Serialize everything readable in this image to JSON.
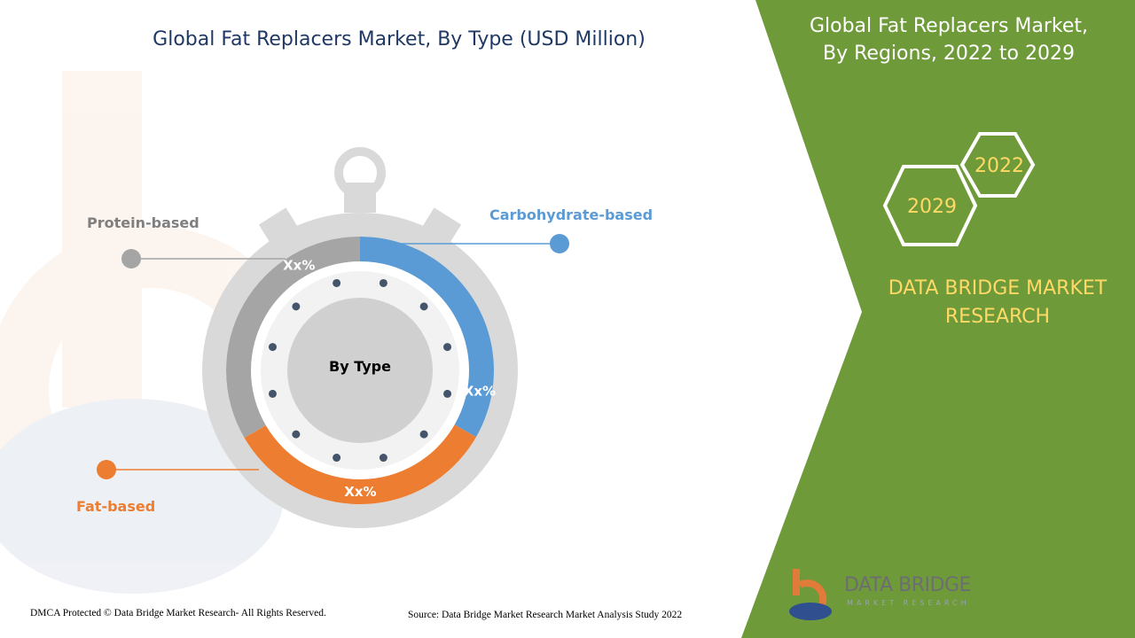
{
  "header": {
    "title": "Global Fat Replacers Market, By Type (USD Million)"
  },
  "side_panel": {
    "title_line1": "Global Fat Replacers Market,",
    "title_line2": "By Regions, 2022 to 2029",
    "year_start": "2022",
    "year_end": "2029",
    "brand_line1": "DATA BRIDGE MARKET",
    "brand_line2": "RESEARCH",
    "panel_color": "#6e9a3a",
    "brand_text_color": "#ffd966"
  },
  "chart_data": {
    "type": "pie",
    "title": "Global Fat Replacers Market, By Type (USD Million)",
    "center_label": "By Type",
    "series": [
      {
        "name": "Carbohydrate-based",
        "label": "Xx%",
        "share": 0.333,
        "color": "#5b9bd5"
      },
      {
        "name": "Fat-based",
        "label": "Xx%",
        "share": 0.333,
        "color": "#ed7d31"
      },
      {
        "name": "Protein-based",
        "label": "Xx%",
        "share": 0.334,
        "color": "#a5a5a5"
      }
    ]
  },
  "footer": {
    "copyright": "DMCA Protected © Data Bridge Market Research- All Rights Reserved.",
    "source": "Source: Data Bridge Market Research Market Analysis Study 2022"
  },
  "logo": {
    "name": "DATA BRIDGE",
    "sub": "MARKET RESEARCH"
  }
}
